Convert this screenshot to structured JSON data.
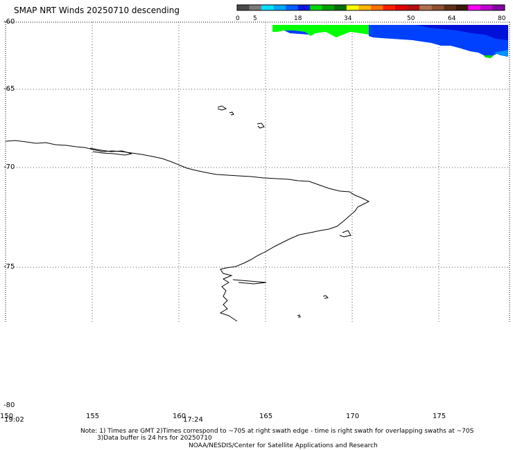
{
  "title": "SMAP NRT Winds  20250710 descending",
  "colorbar": {
    "labels": [
      {
        "value": "0"
      },
      {
        "value": "5"
      },
      {
        "value": "18"
      },
      {
        "value": "34"
      },
      {
        "value": "50"
      },
      {
        "value": "64"
      },
      {
        "value": "80"
      }
    ],
    "segments": [
      "#4a4a4a",
      "#7a7a7a",
      "#00e0ff",
      "#00a8ff",
      "#0060ff",
      "#0018e0",
      "#00d800",
      "#00a000",
      "#007000",
      "#ffff00",
      "#ffb400",
      "#ff7000",
      "#ff2000",
      "#e00000",
      "#b01010",
      "#b07050",
      "#905030",
      "#603018",
      "#3a1a0c",
      "#ff00ff",
      "#c000d0",
      "#8000a0"
    ]
  },
  "latitudes": [
    "-60",
    "-65",
    "-70",
    "-75",
    "-80"
  ],
  "longitudes": [
    "150",
    "155",
    "160",
    "165",
    "170",
    "175"
  ],
  "times": [
    "19:02",
    "17:24"
  ],
  "note_line1": "Note: 1) Times are GMT 2)Times correspond to ~70S at right swath edge - time is right swath for overlapping swaths at ~70S",
  "note_line2": "3)Data buffer is 24 hrs for 20250710",
  "credit": "NOAA/NESDIS/Center for Satellite Applications and Research",
  "swath_colors": {
    "green": "#00ff00",
    "blue": "#0040ff",
    "dark_blue": "#0008d8",
    "light_blue": "#0090ff"
  }
}
